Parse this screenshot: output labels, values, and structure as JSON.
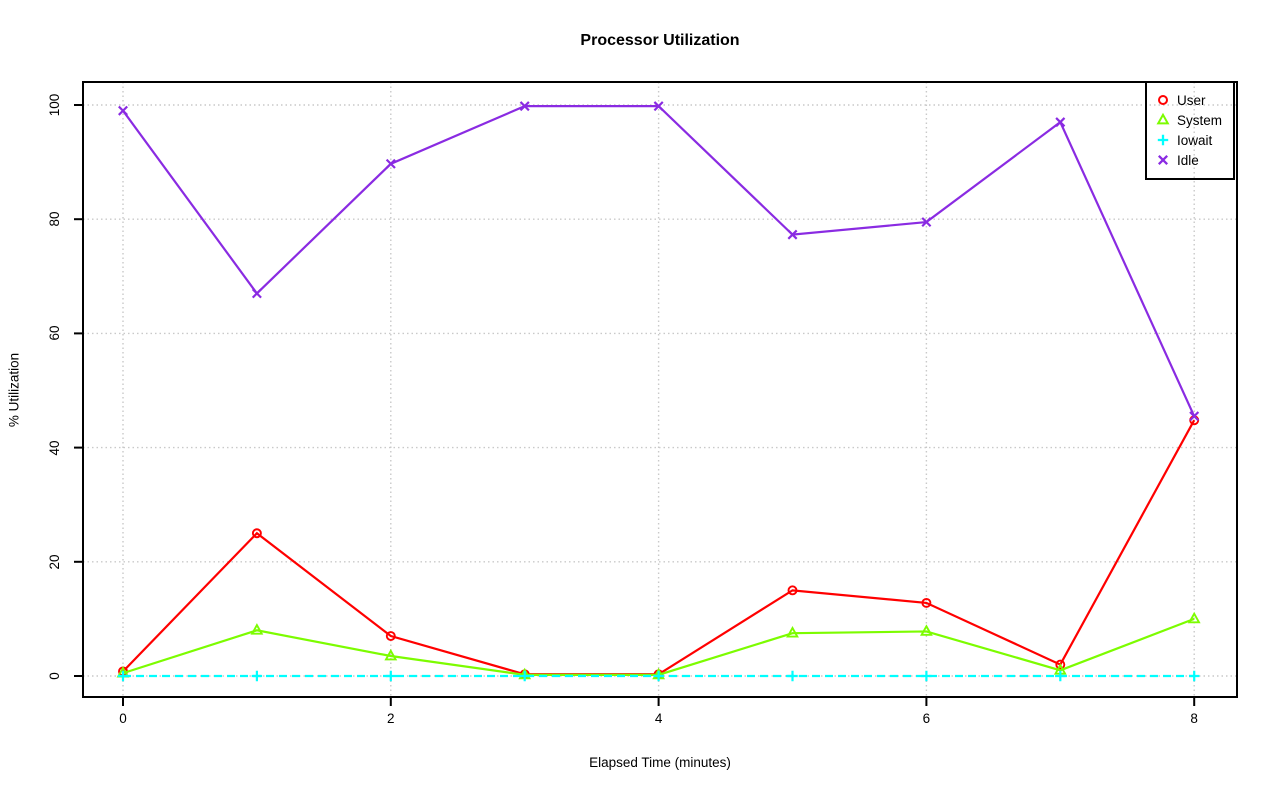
{
  "page": {
    "background": "#FFFFFF"
  },
  "chart_data": {
    "type": "line",
    "title": "Processor Utilization",
    "xlabel": "Elapsed Time (minutes)",
    "ylabel": "% Utilization",
    "x": [
      0,
      1,
      2,
      3,
      4,
      5,
      6,
      7,
      8
    ],
    "xlim": [
      0,
      8
    ],
    "ylim": [
      0,
      100
    ],
    "x_ticks": [
      "0",
      "2",
      "4",
      "6",
      "8"
    ],
    "y_ticks": [
      "0",
      "20",
      "40",
      "60",
      "80",
      "100"
    ],
    "grid": "dotted",
    "grid_color": "#C9C9C9",
    "axis_color": "#000000",
    "legend_position": "top-right",
    "series": [
      {
        "name": "User",
        "color": "#FF0000",
        "marker": "circle",
        "line": "solid",
        "values": [
          0.8,
          25,
          7,
          0.3,
          0.3,
          15,
          12.8,
          2,
          44.8
        ]
      },
      {
        "name": "System",
        "color": "#7CFC00",
        "marker": "triangle",
        "line": "solid",
        "values": [
          0.5,
          8,
          3.5,
          0.2,
          0.2,
          7.5,
          7.8,
          1,
          10
        ]
      },
      {
        "name": "Iowait",
        "color": "#00FFFF",
        "marker": "plus",
        "line": "dashed",
        "values": [
          0,
          0,
          0,
          0,
          0,
          0,
          0,
          0,
          0
        ]
      },
      {
        "name": "Idle",
        "color": "#8A2BE2",
        "marker": "x",
        "line": "solid",
        "values": [
          99,
          67,
          89.7,
          99.8,
          99.8,
          77.3,
          79.5,
          97,
          45.5
        ]
      }
    ]
  }
}
